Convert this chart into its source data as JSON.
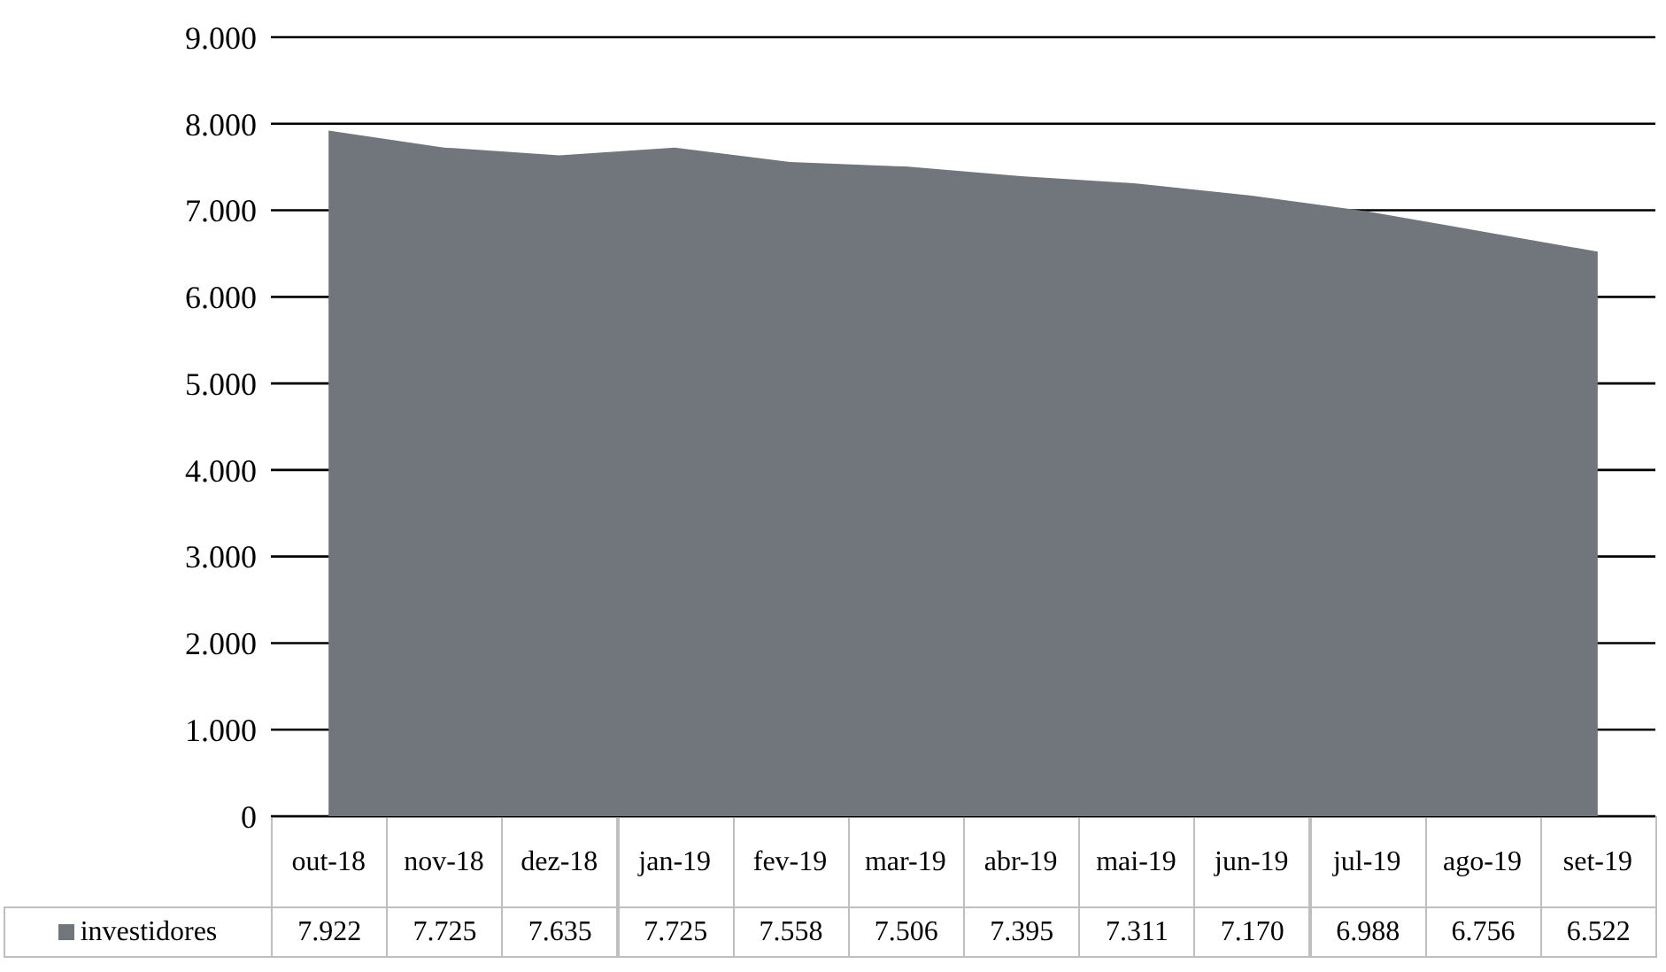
{
  "chart_data": {
    "type": "area",
    "categories": [
      "out-18",
      "nov-18",
      "dez-18",
      "jan-19",
      "fev-19",
      "mar-19",
      "abr-19",
      "mai-19",
      "jun-19",
      "jul-19",
      "ago-19",
      "set-19"
    ],
    "series": [
      {
        "name": "investidores",
        "color": "#70767c",
        "values": [
          7922,
          7725,
          7635,
          7725,
          7558,
          7506,
          7395,
          7311,
          7170,
          6988,
          6756,
          6522
        ],
        "value_labels": [
          "7.922",
          "7.725",
          "7.635",
          "7.725",
          "7.558",
          "7.506",
          "7.395",
          "7.311",
          "7.170",
          "6.988",
          "6.756",
          "6.522"
        ]
      }
    ],
    "ylim": [
      0,
      9000
    ],
    "yticks": [
      {
        "value": 0,
        "label": "0"
      },
      {
        "value": 1000,
        "label": "1.000"
      },
      {
        "value": 2000,
        "label": "2.000"
      },
      {
        "value": 3000,
        "label": "3.000"
      },
      {
        "value": 4000,
        "label": "4.000"
      },
      {
        "value": 5000,
        "label": "5.000"
      },
      {
        "value": 6000,
        "label": "6.000"
      },
      {
        "value": 7000,
        "label": "7.000"
      },
      {
        "value": 8000,
        "label": "8.000"
      },
      {
        "value": 9000,
        "label": "9.000"
      }
    ],
    "grid": "y",
    "legend": "bottom"
  }
}
